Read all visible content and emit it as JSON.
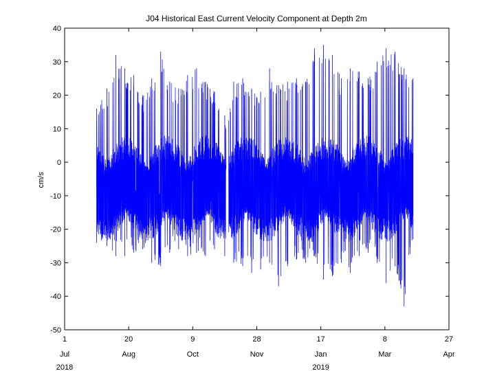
{
  "chart_data": {
    "type": "line",
    "title": "J04 Historical East Current Velocity Component at Depth 2m",
    "xlabel": "",
    "ylabel": "cm/s",
    "ylim": [
      -50,
      40
    ],
    "yticks": [
      40,
      30,
      20,
      10,
      0,
      -10,
      -20,
      -30,
      -40,
      -50
    ],
    "x_start": "2018-07-01",
    "x_end": "2019-04-27",
    "xticks": [
      {
        "date": "2018-07-01",
        "day": "1",
        "month": "Jul",
        "year": "2018"
      },
      {
        "date": "2018-08-20",
        "day": "20",
        "month": "Aug",
        "year": ""
      },
      {
        "date": "2018-10-09",
        "day": "9",
        "month": "Oct",
        "year": ""
      },
      {
        "date": "2018-11-28",
        "day": "28",
        "month": "Nov",
        "year": ""
      },
      {
        "date": "2019-01-17",
        "day": "17",
        "month": "Jan",
        "year": "2019"
      },
      {
        "date": "2019-03-08",
        "day": "8",
        "month": "Mar",
        "year": ""
      },
      {
        "date": "2019-04-27",
        "day": "27",
        "month": "Apr",
        "year": ""
      }
    ],
    "grid": false,
    "legend": "none",
    "series": [
      {
        "color": "#0000ff",
        "data_start": "2018-07-26",
        "data_end": "2019-03-30",
        "gap": [
          "2018-11-04",
          "2018-11-06"
        ],
        "typical_range": [
          -24,
          8
        ],
        "envelope": [
          {
            "date": "2018-07-26",
            "max": 16,
            "min": -24
          },
          {
            "date": "2018-08-03",
            "max": 22,
            "min": -25
          },
          {
            "date": "2018-08-10",
            "max": 32,
            "min": -28
          },
          {
            "date": "2018-08-17",
            "max": 28,
            "min": -28
          },
          {
            "date": "2018-08-24",
            "max": 26,
            "min": -27
          },
          {
            "date": "2018-08-31",
            "max": 20,
            "min": -26
          },
          {
            "date": "2018-09-07",
            "max": 25,
            "min": -30
          },
          {
            "date": "2018-09-14",
            "max": 33,
            "min": -31
          },
          {
            "date": "2018-09-21",
            "max": 24,
            "min": -27
          },
          {
            "date": "2018-09-28",
            "max": 22,
            "min": -26
          },
          {
            "date": "2018-10-05",
            "max": 26,
            "min": -28
          },
          {
            "date": "2018-10-12",
            "max": 28,
            "min": -27
          },
          {
            "date": "2018-10-19",
            "max": 24,
            "min": -28
          },
          {
            "date": "2018-10-26",
            "max": 21,
            "min": -26
          },
          {
            "date": "2018-11-03",
            "max": 14,
            "min": -28
          },
          {
            "date": "2018-11-10",
            "max": 24,
            "min": -30
          },
          {
            "date": "2018-11-17",
            "max": 25,
            "min": -31
          },
          {
            "date": "2018-11-24",
            "max": 22,
            "min": -33
          },
          {
            "date": "2018-12-01",
            "max": 21,
            "min": -32
          },
          {
            "date": "2018-12-08",
            "max": 28,
            "min": -30
          },
          {
            "date": "2018-12-15",
            "max": 23,
            "min": -37
          },
          {
            "date": "2018-12-22",
            "max": 24,
            "min": -31
          },
          {
            "date": "2018-12-29",
            "max": 25,
            "min": -29
          },
          {
            "date": "2019-01-05",
            "max": 24,
            "min": -30
          },
          {
            "date": "2019-01-12",
            "max": 34,
            "min": -28
          },
          {
            "date": "2019-01-19",
            "max": 35,
            "min": -35
          },
          {
            "date": "2019-01-26",
            "max": 32,
            "min": -34
          },
          {
            "date": "2019-02-02",
            "max": 25,
            "min": -30
          },
          {
            "date": "2019-02-09",
            "max": 28,
            "min": -33
          },
          {
            "date": "2019-02-16",
            "max": 27,
            "min": -28
          },
          {
            "date": "2019-02-23",
            "max": 25,
            "min": -27
          },
          {
            "date": "2019-03-02",
            "max": 30,
            "min": -30
          },
          {
            "date": "2019-03-09",
            "max": 34,
            "min": -36
          },
          {
            "date": "2019-03-16",
            "max": 33,
            "min": -31
          },
          {
            "date": "2019-03-23",
            "max": 28,
            "min": -43
          },
          {
            "date": "2019-03-30",
            "max": 25,
            "min": -23
          }
        ]
      }
    ]
  }
}
